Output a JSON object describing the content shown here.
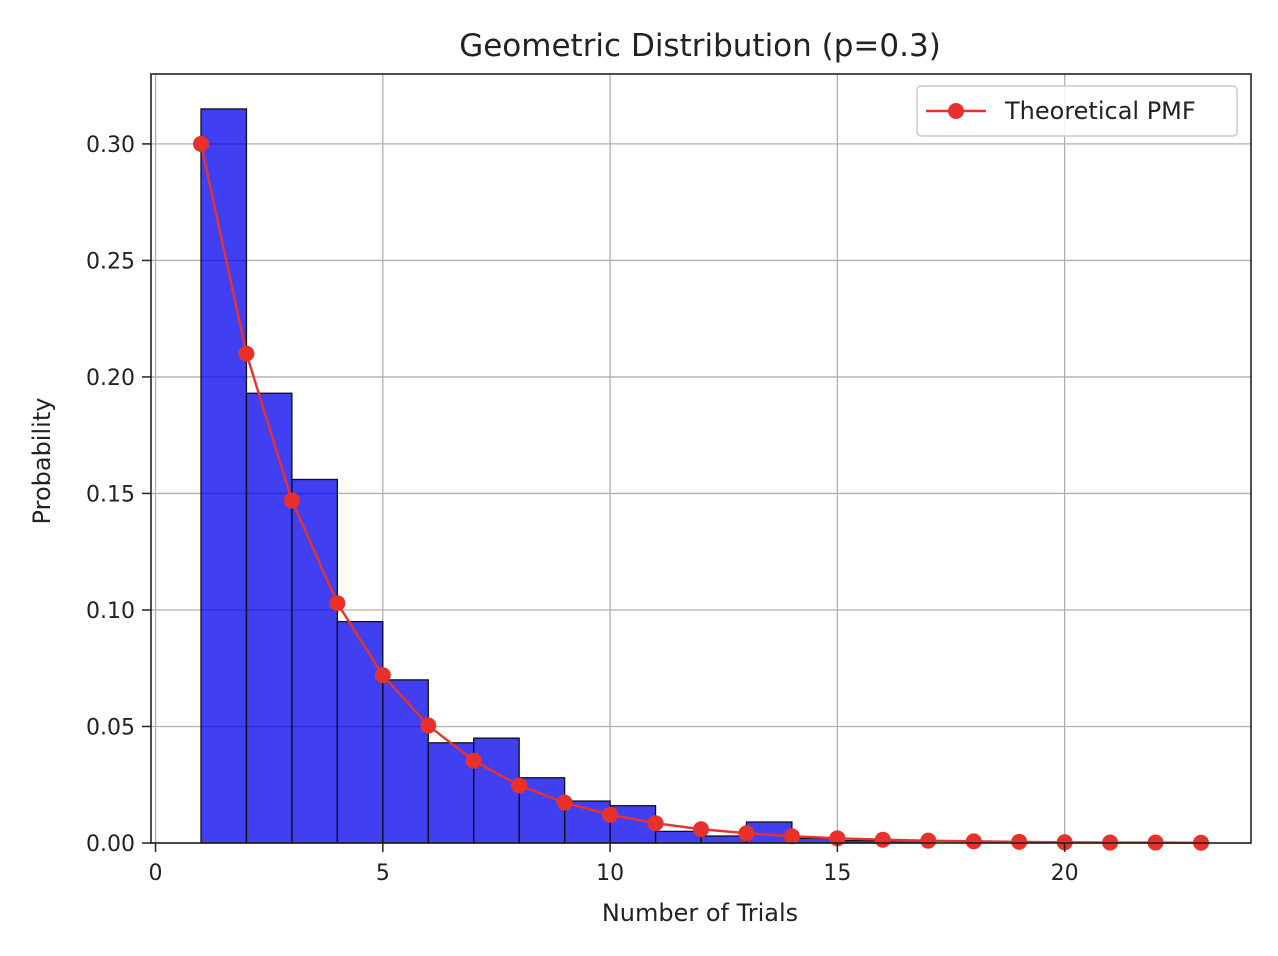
{
  "chart_data": {
    "type": "bar",
    "title": "Geometric Distribution (p=0.3)",
    "xlabel": "Number of Trials",
    "ylabel": "Probability",
    "xlim": [
      -0.1,
      24.1
    ],
    "ylim": [
      0,
      0.33
    ],
    "grid": true,
    "legend_position": "top-right",
    "x_ticks": [
      0,
      5,
      10,
      15,
      20
    ],
    "x_tick_labels": [
      "0",
      "5",
      "10",
      "15",
      "20"
    ],
    "y_ticks": [
      0,
      0.05,
      0.1,
      0.15,
      0.2,
      0.25,
      0.3
    ],
    "y_tick_labels": [
      "0.00",
      "0.05",
      "0.10",
      "0.15",
      "0.20",
      "0.25",
      "0.30"
    ],
    "histogram": {
      "color": "#0000ee",
      "edge_color": "#111111",
      "bins": [
        {
          "x0": 1,
          "x1": 2,
          "value": 0.315
        },
        {
          "x0": 2,
          "x1": 3,
          "value": 0.193
        },
        {
          "x0": 3,
          "x1": 4,
          "value": 0.156
        },
        {
          "x0": 4,
          "x1": 5,
          "value": 0.095
        },
        {
          "x0": 5,
          "x1": 6,
          "value": 0.07
        },
        {
          "x0": 6,
          "x1": 7,
          "value": 0.043
        },
        {
          "x0": 7,
          "x1": 8,
          "value": 0.045
        },
        {
          "x0": 8,
          "x1": 9,
          "value": 0.028
        },
        {
          "x0": 9,
          "x1": 10,
          "value": 0.018
        },
        {
          "x0": 10,
          "x1": 11,
          "value": 0.016
        },
        {
          "x0": 11,
          "x1": 12,
          "value": 0.005
        },
        {
          "x0": 12,
          "x1": 13,
          "value": 0.003
        },
        {
          "x0": 13,
          "x1": 14,
          "value": 0.009
        },
        {
          "x0": 14,
          "x1": 15,
          "value": 0.002
        },
        {
          "x0": 15,
          "x1": 16,
          "value": 0.001
        },
        {
          "x0": 16,
          "x1": 17,
          "value": 0.001
        },
        {
          "x0": 17,
          "x1": 18,
          "value": 0.0
        },
        {
          "x0": 18,
          "x1": 19,
          "value": 0.0
        },
        {
          "x0": 19,
          "x1": 20,
          "value": 0.0
        },
        {
          "x0": 20,
          "x1": 21,
          "value": 0.0
        },
        {
          "x0": 21,
          "x1": 22,
          "value": 0.0
        },
        {
          "x0": 22,
          "x1": 23,
          "value": 0.0
        }
      ]
    },
    "series": [
      {
        "name": "Theoretical PMF",
        "type": "line",
        "color": "#e8312a",
        "marker": "circle",
        "x": [
          1,
          2,
          3,
          4,
          5,
          6,
          7,
          8,
          9,
          10,
          11,
          12,
          13,
          14,
          15,
          16,
          17,
          18,
          19,
          20,
          21,
          22,
          23
        ],
        "values": [
          0.3,
          0.21,
          0.147,
          0.1029,
          0.072,
          0.0504,
          0.0353,
          0.0247,
          0.0173,
          0.0121,
          0.0085,
          0.0059,
          0.0042,
          0.0029,
          0.002,
          0.0014,
          0.001,
          0.0007,
          0.0005,
          0.0003,
          0.0002,
          0.0002,
          0.0001
        ]
      }
    ]
  }
}
